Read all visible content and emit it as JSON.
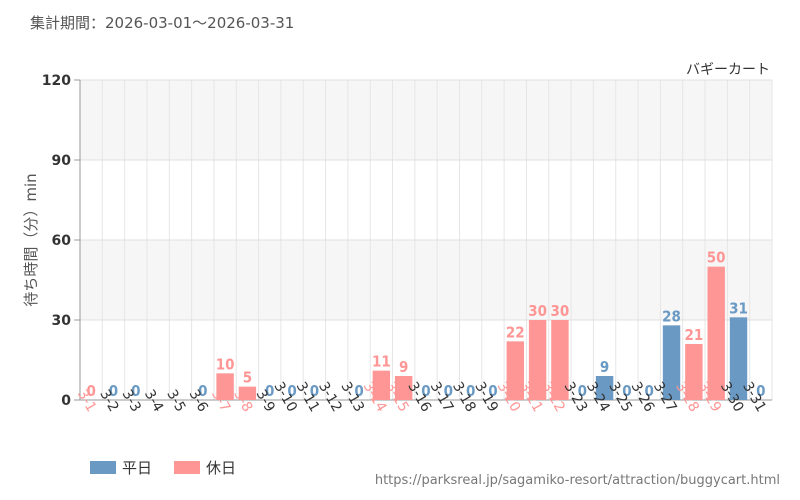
{
  "header": {
    "period": "集計期間：2026-03-01～2026-03-31"
  },
  "footer": {
    "url": "https://parksreal.jp/sagamiko-resort/attraction/buggycart.html"
  },
  "colors": {
    "weekday": "#6a9ac4",
    "holiday": "#ff9696",
    "axis_text": "#333333"
  },
  "legend": {
    "weekday": "平日",
    "holiday": "休日"
  },
  "chart_data": {
    "type": "bar",
    "title": "バギーカート",
    "ylabel": "待ち時間（分）min",
    "xlabel": "",
    "ylim": [
      0,
      120
    ],
    "yticks": [
      0,
      30,
      60,
      90,
      120
    ],
    "grid": true,
    "legend_position": "bottom-left",
    "categories": [
      "3-1",
      "3-2",
      "3-3",
      "3-4",
      "3-5",
      "3-6",
      "3-7",
      "3-8",
      "3-9",
      "3-10",
      "3-11",
      "3-12",
      "3-13",
      "3-14",
      "3-15",
      "3-16",
      "3-17",
      "3-18",
      "3-19",
      "3-20",
      "3-21",
      "3-22",
      "3-23",
      "3-24",
      "3-25",
      "3-26",
      "3-27",
      "3-28",
      "3-29",
      "3-30",
      "3-31"
    ],
    "values": [
      0,
      0,
      0,
      null,
      null,
      0,
      10,
      5,
      0,
      0,
      0,
      null,
      0,
      11,
      9,
      0,
      0,
      0,
      0,
      22,
      30,
      30,
      0,
      9,
      0,
      0,
      28,
      21,
      50,
      31,
      0
    ],
    "day_type": [
      "holiday",
      "weekday",
      "weekday",
      "weekday",
      "weekday",
      "weekday",
      "holiday",
      "holiday",
      "weekday",
      "weekday",
      "weekday",
      "weekday",
      "weekday",
      "holiday",
      "holiday",
      "weekday",
      "weekday",
      "weekday",
      "weekday",
      "holiday",
      "holiday",
      "holiday",
      "weekday",
      "weekday",
      "weekday",
      "weekday",
      "weekday",
      "holiday",
      "holiday",
      "weekday",
      "weekday"
    ]
  }
}
